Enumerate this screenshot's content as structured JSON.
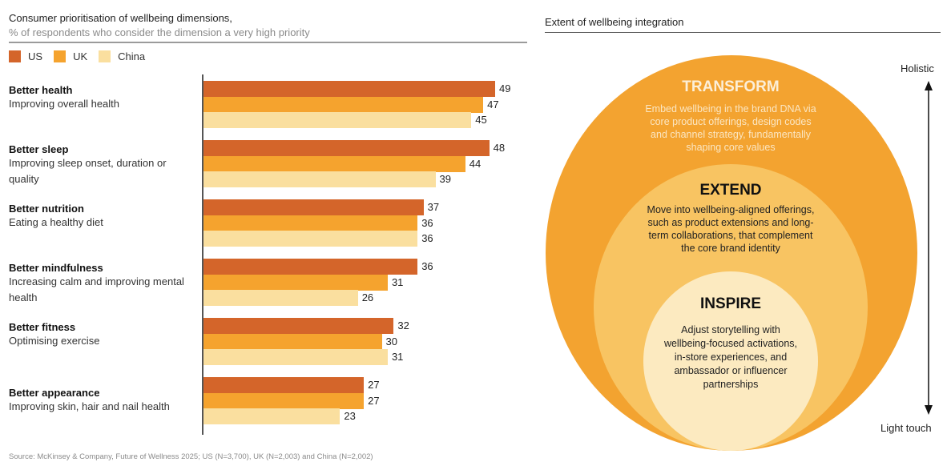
{
  "left_panel": {
    "title": "Consumer prioritisation of wellbeing dimensions,",
    "subtitle": "% of respondents who consider the dimension a very high priority",
    "source": "Source: McKinsey & Company, Future of Wellness 2025; US (N=3,700), UK (N=2,003) and China (N=2,002)"
  },
  "colors": {
    "US": "#D4652A",
    "UK": "#F5A32E",
    "China": "#FADF9F",
    "outer_ring": "#F3A330",
    "middle_ring": "#F8C462",
    "inner_ring": "#FCEAC0",
    "axis": "#555555"
  },
  "chart_data": {
    "type": "bar",
    "orientation": "horizontal",
    "title": "Consumer prioritisation of wellbeing dimensions,",
    "subtitle": "% of respondents who consider the dimension a very high priority",
    "xlabel": "",
    "ylabel": "",
    "xlim": [
      0,
      50
    ],
    "grid": false,
    "legend_position": "top-left",
    "categories": [
      {
        "title": "Better health",
        "description": "Improving overall health"
      },
      {
        "title": "Better sleep",
        "description": "Improving sleep onset, duration or quality"
      },
      {
        "title": "Better nutrition",
        "description": "Eating a healthy diet"
      },
      {
        "title": "Better mindfulness",
        "description": "Increasing calm and improving mental health"
      },
      {
        "title": "Better fitness",
        "description": "Optimising exercise"
      },
      {
        "title": "Better appearance",
        "description": "Improving skin, hair and nail health"
      }
    ],
    "series": [
      {
        "name": "US",
        "values": [
          49,
          48,
          37,
          36,
          32,
          27
        ]
      },
      {
        "name": "UK",
        "values": [
          47,
          44,
          36,
          31,
          30,
          27
        ]
      },
      {
        "name": "China",
        "values": [
          45,
          39,
          36,
          26,
          31,
          23
        ]
      }
    ],
    "source": "Source: McKinsey & Company, Future of Wellness 2025; US (N=3,700), UK (N=2,003) and China (N=2,002)"
  },
  "right_panel": {
    "title": "Extent of wellbeing integration",
    "axis_top_label": "Holistic",
    "axis_bottom_label": "Light touch",
    "rings": [
      {
        "title": "TRANSFORM",
        "lines": [
          "Embed wellbeing in the brand DNA via",
          "core product offerings, design codes",
          "and channel strategy, fundamentally",
          "shaping core values"
        ]
      },
      {
        "title": "EXTEND",
        "lines": [
          "Move into wellbeing-aligned offerings,",
          "such as product extensions and long-",
          "term collaborations, that complement",
          "the core brand identity"
        ]
      },
      {
        "title": "INSPIRE",
        "lines": [
          "Adjust storytelling with",
          "wellbeing-focused activations,",
          "in-store experiences, and",
          "ambassador or influencer",
          "partnerships"
        ]
      }
    ]
  }
}
